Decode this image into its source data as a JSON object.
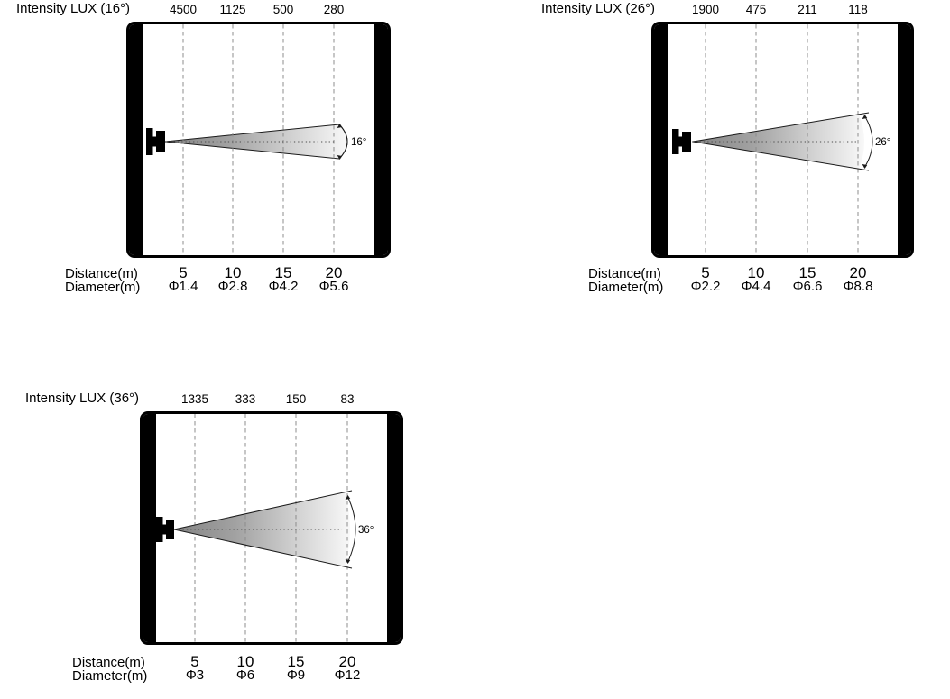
{
  "page": {
    "background": "#ffffff"
  },
  "colors": {
    "frame_border": "#000000",
    "side_bar": "#000000",
    "gridline_dashed": "#8c8c8c",
    "center_dotted": "#4d4d4d",
    "beam_outline": "#1a1a1a",
    "beam_gradient_start": "#848484",
    "beam_gradient_end": "#f8f8f8",
    "text": "#000000"
  },
  "diagrams": [
    {
      "name": "beam-16deg",
      "title": "Intensity LUX (16°)",
      "beam_angle": "16°",
      "intensity_values": [
        "4500",
        "1125",
        "500",
        "280"
      ],
      "distance_label": "Distance(m)",
      "diameter_label": "Diameter(m)",
      "distance_values": [
        "5",
        "10",
        "15",
        "20"
      ],
      "diameter_values": [
        "Φ1.4",
        "Φ2.8",
        "Φ4.2",
        "Φ5.6"
      ]
    },
    {
      "name": "beam-26deg",
      "title": "Intensity LUX (26°)",
      "beam_angle": "26°",
      "intensity_values": [
        "1900",
        "475",
        "211",
        "118"
      ],
      "distance_label": "Distance(m)",
      "diameter_label": "Diameter(m)",
      "distance_values": [
        "5",
        "10",
        "15",
        "20"
      ],
      "diameter_values": [
        "Φ2.2",
        "Φ4.4",
        "Φ6.6",
        "Φ8.8"
      ]
    },
    {
      "name": "beam-36deg",
      "title": "Intensity LUX (36°)",
      "beam_angle": "36°",
      "intensity_values": [
        "1335",
        "333",
        "150",
        "83"
      ],
      "distance_label": "Distance(m)",
      "diameter_label": "Diameter(m)",
      "distance_values": [
        "5",
        "10",
        "15",
        "20"
      ],
      "diameter_values": [
        "Φ3",
        "Φ6",
        "Φ9",
        "Φ12"
      ]
    }
  ],
  "chart_data": [
    {
      "type": "table",
      "title": "Intensity LUX (16°)",
      "beam_angle_deg": 16,
      "distance_m": [
        5,
        10,
        15,
        20
      ],
      "intensity_lux": [
        4500,
        1125,
        500,
        280
      ],
      "diameter_m": [
        1.4,
        2.8,
        4.2,
        5.6
      ]
    },
    {
      "type": "table",
      "title": "Intensity LUX (26°)",
      "beam_angle_deg": 26,
      "distance_m": [
        5,
        10,
        15,
        20
      ],
      "intensity_lux": [
        1900,
        475,
        211,
        118
      ],
      "diameter_m": [
        2.2,
        4.4,
        6.6,
        8.8
      ]
    },
    {
      "type": "table",
      "title": "Intensity LUX (36°)",
      "beam_angle_deg": 36,
      "distance_m": [
        5,
        10,
        15,
        20
      ],
      "intensity_lux": [
        1335,
        333,
        150,
        83
      ],
      "diameter_m": [
        3,
        6,
        9,
        12
      ]
    }
  ]
}
